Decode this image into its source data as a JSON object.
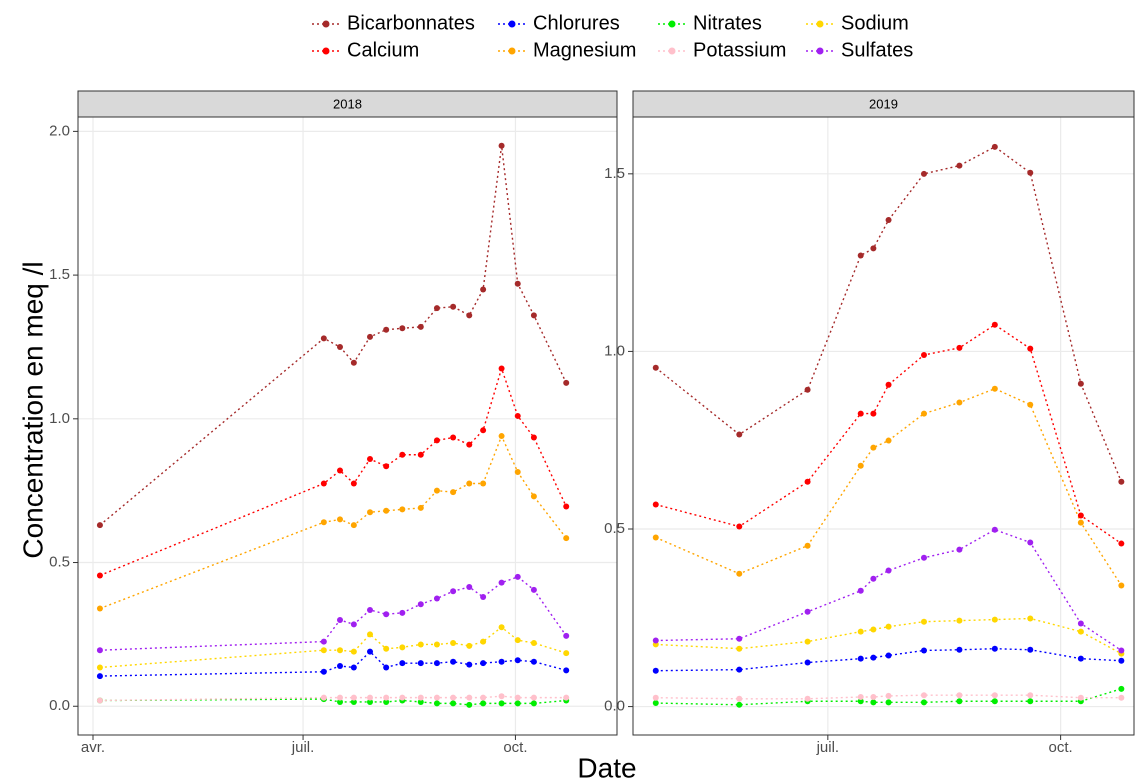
{
  "chart_data": {
    "type": "line",
    "xlabel": "Date",
    "ylabel": "Concentration en meq /l",
    "grid": true,
    "series": [
      {
        "name": "Bicarbonnates",
        "color": "#a52a2a"
      },
      {
        "name": "Calcium",
        "color": "#ff0000"
      },
      {
        "name": "Chlorures",
        "color": "#0000ff"
      },
      {
        "name": "Magnesium",
        "color": "#ffa500"
      },
      {
        "name": "Nitrates",
        "color": "#00ee00"
      },
      {
        "name": "Potassium",
        "color": "#ffc0cb"
      },
      {
        "name": "Sodium",
        "color": "#ffd700"
      },
      {
        "name": "Sulfates",
        "color": "#a020f0"
      }
    ],
    "panels": [
      {
        "title": "2018",
        "x": [
          94,
          191,
          198,
          204,
          211,
          218,
          225,
          233,
          240,
          247,
          254,
          260,
          268,
          275,
          282,
          296
        ],
        "xlim": [
          84.5,
          318
        ],
        "xticks": [
          {
            "value": 91,
            "label": "avr."
          },
          {
            "value": 182,
            "label": "juil."
          },
          {
            "value": 274,
            "label": "oct."
          }
        ],
        "ylim": [
          -0.1,
          2.05
        ],
        "yticks": [
          {
            "value": 0,
            "label": "0.0"
          },
          0.5,
          {
            "value": 1,
            "label": "1.0"
          },
          1.5,
          {
            "value": 2,
            "label": "2.0"
          }
        ],
        "values": [
          [
            0.63,
            1.28,
            1.25,
            1.195,
            1.285,
            1.31,
            1.315,
            1.32,
            1.385,
            1.39,
            1.36,
            1.45,
            1.95,
            1.47,
            1.36,
            1.125
          ],
          [
            0.455,
            0.775,
            0.82,
            0.775,
            0.86,
            0.835,
            0.875,
            0.875,
            0.925,
            0.935,
            0.91,
            0.96,
            1.175,
            1.01,
            0.935,
            0.695
          ],
          [
            0.105,
            0.12,
            0.14,
            0.135,
            0.19,
            0.135,
            0.15,
            0.15,
            0.15,
            0.155,
            0.145,
            0.15,
            0.155,
            0.16,
            0.155,
            0.125
          ],
          [
            0.34,
            0.64,
            0.65,
            0.63,
            0.675,
            0.68,
            0.685,
            0.69,
            0.75,
            0.745,
            0.775,
            0.775,
            0.94,
            0.815,
            0.73,
            0.585
          ],
          [
            0.02,
            0.025,
            0.015,
            0.015,
            0.015,
            0.015,
            0.02,
            0.015,
            0.01,
            0.01,
            0.005,
            0.01,
            0.01,
            0.01,
            0.01,
            0.02
          ],
          [
            0.02,
            0.03,
            0.03,
            0.03,
            0.03,
            0.03,
            0.03,
            0.03,
            0.03,
            0.03,
            0.03,
            0.03,
            0.035,
            0.03,
            0.03,
            0.03
          ],
          [
            0.135,
            0.195,
            0.195,
            0.19,
            0.25,
            0.2,
            0.205,
            0.215,
            0.215,
            0.22,
            0.21,
            0.225,
            0.275,
            0.23,
            0.22,
            0.185
          ],
          [
            0.195,
            0.225,
            0.3,
            0.285,
            0.335,
            0.32,
            0.325,
            0.355,
            0.375,
            0.4,
            0.415,
            0.38,
            0.43,
            0.45,
            0.405,
            0.245
          ]
        ]
      },
      {
        "title": "2019",
        "x": [
          114,
          147,
          174,
          195,
          200,
          206,
          220,
          234,
          248,
          262,
          282,
          298
        ],
        "xlim": [
          105,
          303
        ],
        "xticks": [
          {
            "value": 182,
            "label": "juil."
          },
          {
            "value": 274,
            "label": "oct."
          }
        ],
        "ylim": [
          -0.08,
          1.66
        ],
        "yticks": [
          {
            "value": 0,
            "label": "0.0"
          },
          0.5,
          {
            "value": 1,
            "label": "1.0"
          },
          1.5
        ],
        "values": [
          [
            0.954,
            0.766,
            0.892,
            1.27,
            1.29,
            1.37,
            1.5,
            1.523,
            1.576,
            1.503,
            0.909,
            0.633
          ],
          [
            0.569,
            0.507,
            0.633,
            0.825,
            0.825,
            0.906,
            0.99,
            1.01,
            1.075,
            1.008,
            0.538,
            0.459
          ],
          [
            0.101,
            0.104,
            0.124,
            0.135,
            0.138,
            0.144,
            0.158,
            0.16,
            0.163,
            0.16,
            0.135,
            0.129
          ],
          [
            0.476,
            0.374,
            0.453,
            0.678,
            0.729,
            0.749,
            0.825,
            0.856,
            0.895,
            0.85,
            0.518,
            0.341
          ],
          [
            0.01,
            0.005,
            0.015,
            0.015,
            0.012,
            0.012,
            0.012,
            0.015,
            0.015,
            0.015,
            0.015,
            0.05
          ],
          [
            0.025,
            0.022,
            0.022,
            0.027,
            0.027,
            0.03,
            0.032,
            0.032,
            0.032,
            0.032,
            0.025,
            0.025
          ],
          [
            0.175,
            0.163,
            0.183,
            0.211,
            0.217,
            0.225,
            0.239,
            0.242,
            0.245,
            0.248,
            0.211,
            0.149
          ],
          [
            0.186,
            0.191,
            0.267,
            0.326,
            0.36,
            0.383,
            0.419,
            0.442,
            0.498,
            0.462,
            0.234,
            0.158
          ]
        ]
      }
    ]
  }
}
